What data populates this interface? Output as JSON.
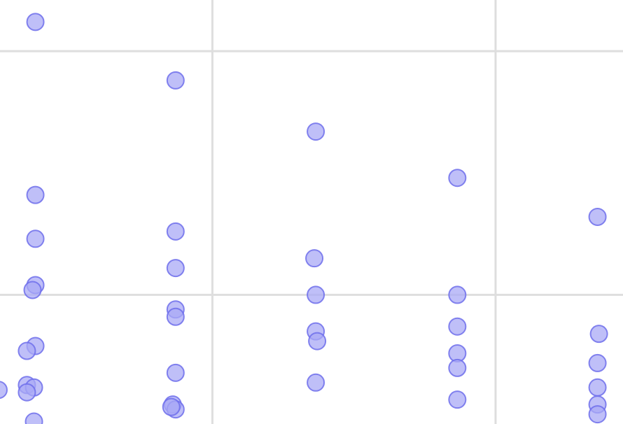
{
  "chart_data": {
    "type": "scatter",
    "title": "",
    "xlabel": "",
    "ylabel": "",
    "grid": true,
    "legend": "none",
    "colors": {
      "point_fill": "#aaaaf5",
      "point_stroke": "#6e6eeb",
      "grid": "#dedede"
    },
    "xlim": [
      0,
      4.4
    ],
    "ylim": [
      0,
      1.74
    ],
    "x_gridlines": [
      1.5,
      3.5
    ],
    "y_gridlines": [
      0.53,
      1.53
    ],
    "series": [
      {
        "points": [
          {
            "x": 0.25,
            "y": 1.65
          },
          {
            "x": 0.25,
            "y": 0.94
          },
          {
            "x": 0.25,
            "y": 0.76
          },
          {
            "x": 0.25,
            "y": 0.57
          },
          {
            "x": 0.23,
            "y": 0.55
          },
          {
            "x": 0.25,
            "y": 0.32
          },
          {
            "x": 0.19,
            "y": 0.3
          },
          {
            "x": 0.19,
            "y": 0.16
          },
          {
            "x": 0.24,
            "y": 0.15
          },
          {
            "x": 0.19,
            "y": 0.13
          },
          {
            "x": 0.24,
            "y": 0.01
          },
          {
            "x": -0.01,
            "y": 0.14
          },
          {
            "x": 1.24,
            "y": 1.41
          },
          {
            "x": 1.24,
            "y": 0.79
          },
          {
            "x": 1.24,
            "y": 0.64
          },
          {
            "x": 1.24,
            "y": 0.47
          },
          {
            "x": 1.24,
            "y": 0.44
          },
          {
            "x": 1.24,
            "y": 0.21
          },
          {
            "x": 1.22,
            "y": 0.08
          },
          {
            "x": 1.24,
            "y": 0.06
          },
          {
            "x": 1.21,
            "y": 0.07
          },
          {
            "x": 2.23,
            "y": 1.2
          },
          {
            "x": 2.22,
            "y": 0.68
          },
          {
            "x": 2.23,
            "y": 0.53
          },
          {
            "x": 2.23,
            "y": 0.38
          },
          {
            "x": 2.24,
            "y": 0.34
          },
          {
            "x": 2.23,
            "y": 0.17
          },
          {
            "x": 3.23,
            "y": 1.01
          },
          {
            "x": 3.23,
            "y": 0.53
          },
          {
            "x": 3.23,
            "y": 0.4
          },
          {
            "x": 3.23,
            "y": 0.29
          },
          {
            "x": 3.23,
            "y": 0.23
          },
          {
            "x": 3.23,
            "y": 0.1
          },
          {
            "x": 4.22,
            "y": 0.85
          },
          {
            "x": 4.23,
            "y": 0.37
          },
          {
            "x": 4.22,
            "y": 0.25
          },
          {
            "x": 4.22,
            "y": 0.15
          },
          {
            "x": 4.22,
            "y": 0.08
          },
          {
            "x": 4.22,
            "y": 0.04
          }
        ]
      }
    ]
  }
}
